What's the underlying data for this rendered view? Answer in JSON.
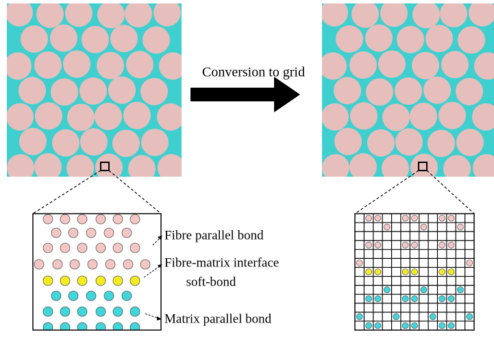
{
  "arrow_label": "Conversion to grid",
  "labels": [
    "Fibre parallel bond",
    "Fibre-matrix interface",
    "soft-bond",
    "Matrix parallel bond"
  ]
}
